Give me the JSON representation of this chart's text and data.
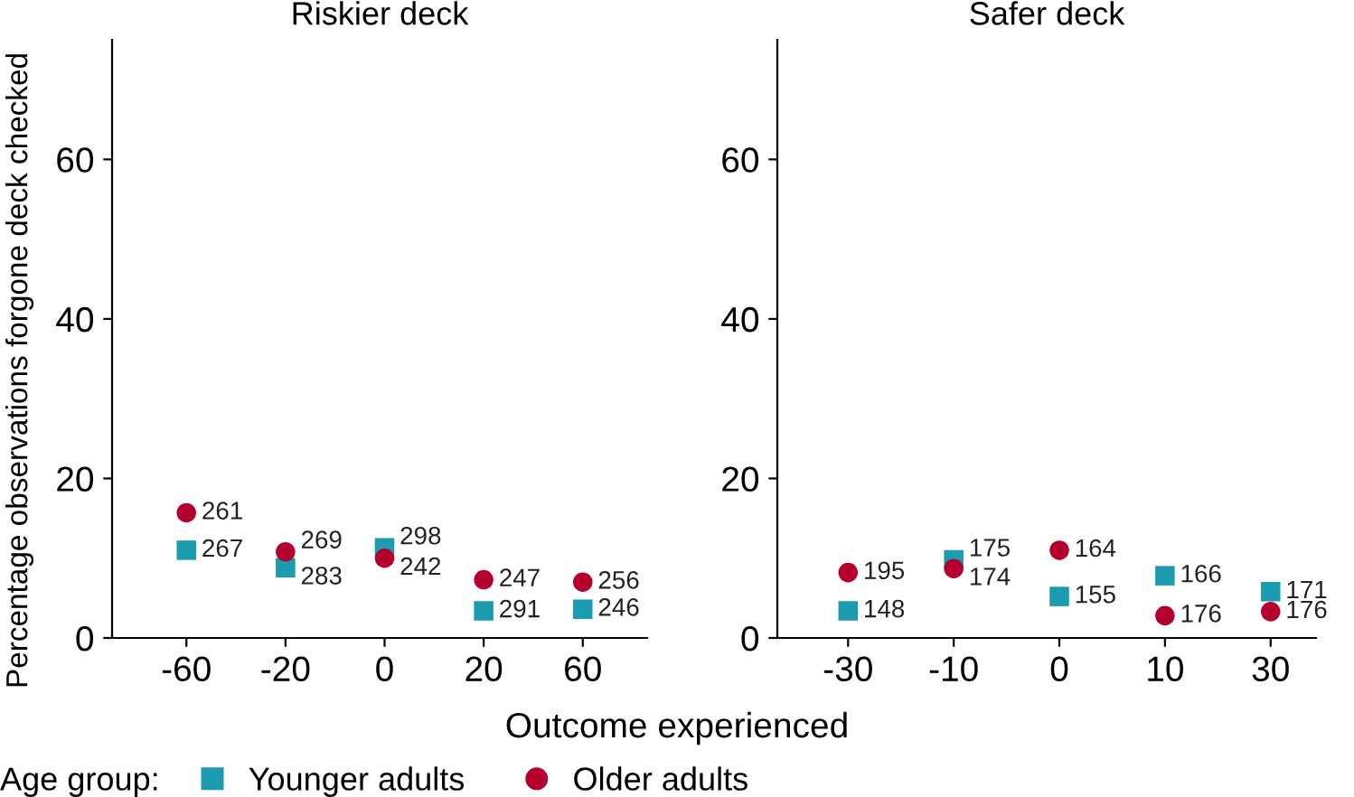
{
  "chart_data": [
    {
      "type": "scatter",
      "title": "Riskier deck",
      "ylabel": "Percentage observations forgone deck checked",
      "xlabel": "Outcome experienced",
      "legend_title": "Age group:",
      "legend": "bottom",
      "grid": false,
      "categories": [
        "-60",
        "-20",
        "0",
        "20",
        "60"
      ],
      "ylim": [
        0,
        75
      ],
      "yticks": [
        0,
        20,
        40,
        60
      ],
      "series": [
        {
          "name": "Younger adults",
          "color": "#1a9bb0",
          "marker": "square",
          "values": [
            11,
            8.8,
            11.3,
            3.4,
            3.6
          ]
        },
        {
          "name": "Older adults",
          "color": "#b5002e",
          "marker": "circle",
          "values": [
            15.7,
            10.8,
            10,
            7.3,
            7
          ]
        }
      ],
      "annotations": [
        {
          "text": "267",
          "x": "-60",
          "y": 11
        },
        {
          "text": "283",
          "x": "-20",
          "y": 8.8
        },
        {
          "text": "298",
          "x": "0",
          "y": 11.3
        },
        {
          "text": "291",
          "x": "20",
          "y": 3.4
        },
        {
          "text": "246",
          "x": "60",
          "y": 3.6
        },
        {
          "text": "261",
          "x": "-60",
          "y": 15.7
        },
        {
          "text": "269",
          "x": "-20",
          "y": 10.8
        },
        {
          "text": "242",
          "x": "0",
          "y": 10
        },
        {
          "text": "247",
          "x": "20",
          "y": 7.3
        },
        {
          "text": "256",
          "x": "60",
          "y": 7
        }
      ]
    },
    {
      "type": "scatter",
      "title": "Safer deck",
      "grid": false,
      "categories": [
        "-30",
        "-10",
        "0",
        "10",
        "30"
      ],
      "ylim": [
        0,
        75
      ],
      "yticks": [
        0,
        20,
        40,
        60
      ],
      "series": [
        {
          "name": "Younger adults",
          "color": "#1a9bb0",
          "marker": "square",
          "values": [
            3.4,
            9.8,
            5.2,
            7.8,
            5.8
          ]
        },
        {
          "name": "Older adults",
          "color": "#b5002e",
          "marker": "circle",
          "values": [
            8.2,
            8.7,
            11,
            2.8,
            3.3
          ]
        }
      ],
      "annotations": [
        {
          "text": "148",
          "x": "-30",
          "y": 3.4
        },
        {
          "text": "175",
          "x": "-10",
          "y": 9.8
        },
        {
          "text": "155",
          "x": "0",
          "y": 5.2
        },
        {
          "text": "166",
          "x": "10",
          "y": 7.8
        },
        {
          "text": "171",
          "x": "30",
          "y": 5.8
        },
        {
          "text": "195",
          "x": "-30",
          "y": 8.2
        },
        {
          "text": "174",
          "x": "-10",
          "y": 8.7
        },
        {
          "text": "164",
          "x": "0",
          "y": 11
        },
        {
          "text": "176",
          "x": "10",
          "y": 2.8
        },
        {
          "text": "176",
          "x": "30",
          "y": 3.3
        }
      ]
    }
  ]
}
